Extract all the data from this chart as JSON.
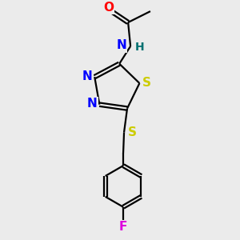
{
  "bg_color": "#ebebeb",
  "bond_color": "#000000",
  "colors": {
    "O": "#ff0000",
    "N": "#0000ff",
    "S": "#cccc00",
    "F": "#dd00dd",
    "H": "#007070",
    "C": "#000000"
  },
  "figsize": [
    3.0,
    3.0
  ],
  "dpi": 100,
  "lw": 1.6,
  "fontsize": 11
}
